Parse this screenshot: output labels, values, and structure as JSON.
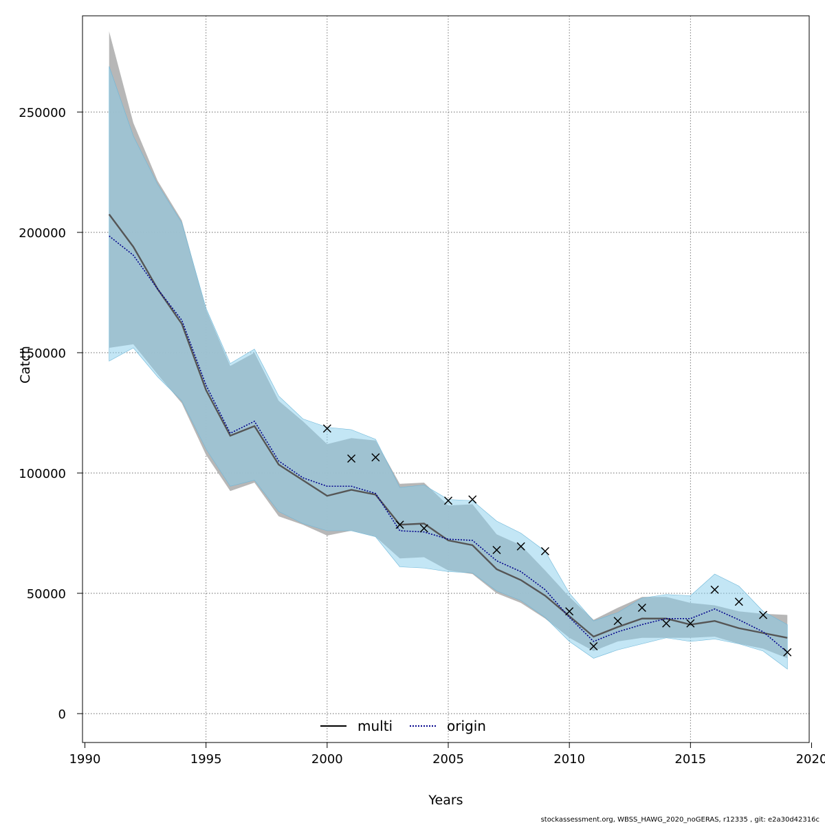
{
  "chart_data": {
    "type": "line",
    "title": "",
    "xlabel": "Years",
    "ylabel": "Catch",
    "xlim": [
      1990,
      2020
    ],
    "ylim": [
      -12000,
      290000
    ],
    "x_ticks": [
      1990,
      1995,
      2000,
      2005,
      2010,
      2015,
      2020
    ],
    "y_ticks": [
      0,
      50000,
      100000,
      150000,
      200000,
      250000
    ],
    "grid": true,
    "legend_position": "bottom-center",
    "years": [
      1991,
      1992,
      1993,
      1994,
      1995,
      1996,
      1997,
      1998,
      1999,
      2000,
      2001,
      2002,
      2003,
      2004,
      2005,
      2006,
      2007,
      2008,
      2009,
      2010,
      2011,
      2012,
      2013,
      2014,
      2015,
      2016,
      2017,
      2018,
      2019
    ],
    "series": [
      {
        "name": "multi",
        "style": "solid",
        "color": "#555555",
        "band_color": "#b3b3b3",
        "values": [
          207500,
          194000,
          176500,
          162000,
          134500,
          115500,
          119500,
          103500,
          97000,
          90500,
          93000,
          91000,
          78500,
          79000,
          72000,
          70000,
          60000,
          55500,
          49000,
          40500,
          32000,
          36000,
          39500,
          39500,
          37000,
          38500,
          35500,
          33500,
          31500
        ],
        "lower": [
          152000,
          153500,
          141000,
          129000,
          107500,
          92500,
          96000,
          82000,
          78500,
          74000,
          76000,
          73500,
          64500,
          65000,
          59500,
          58000,
          50000,
          46000,
          39500,
          31500,
          26000,
          30000,
          31500,
          31500,
          31500,
          32000,
          29000,
          27000,
          23000
        ],
        "upper": [
          283500,
          245500,
          221500,
          205000,
          168000,
          144500,
          150000,
          130000,
          121500,
          112000,
          114500,
          113500,
          95500,
          96000,
          86500,
          87000,
          74500,
          70000,
          59500,
          48500,
          39000,
          44000,
          48500,
          48500,
          46000,
          45000,
          42500,
          41500,
          41000
        ]
      },
      {
        "name": "origin",
        "style": "dotted",
        "color": "#00008b",
        "band_color": "#87ceeb",
        "values": [
          198500,
          190500,
          176500,
          163500,
          136500,
          116500,
          121500,
          105000,
          98000,
          94500,
          94500,
          91500,
          76000,
          75500,
          72500,
          72000,
          63500,
          59000,
          51500,
          40000,
          30000,
          34000,
          37000,
          39500,
          39500,
          43500,
          39000,
          34000,
          25500
        ],
        "lower": [
          146500,
          152000,
          140000,
          130000,
          110000,
          94500,
          97000,
          84000,
          79000,
          76000,
          76000,
          73500,
          61000,
          60500,
          59000,
          58500,
          51000,
          47000,
          40000,
          30000,
          23000,
          26500,
          29000,
          31500,
          30000,
          31000,
          29000,
          26000,
          18500
        ],
        "upper": [
          269000,
          240000,
          220000,
          204000,
          168500,
          145500,
          151500,
          132000,
          122500,
          119000,
          118000,
          114000,
          94000,
          95000,
          89000,
          88500,
          80000,
          75000,
          67500,
          50000,
          38500,
          42000,
          48000,
          49500,
          49000,
          58000,
          53000,
          42500,
          37000
        ]
      }
    ],
    "observations": {
      "marker": "x",
      "years": [
        2000,
        2001,
        2002,
        2003,
        2004,
        2005,
        2006,
        2007,
        2008,
        2009,
        2010,
        2011,
        2012,
        2013,
        2014,
        2015,
        2016,
        2017,
        2018,
        2019
      ],
      "values": [
        118500,
        106000,
        106500,
        78500,
        77000,
        88500,
        89000,
        68000,
        69500,
        67500,
        42500,
        28000,
        38500,
        44000,
        37500,
        37500,
        51500,
        46500,
        41000,
        25500
      ]
    }
  },
  "footer": "stockassessment.org, WBSS_HAWG_2020_noGERAS, r12335 , git: e2a30d42316c"
}
